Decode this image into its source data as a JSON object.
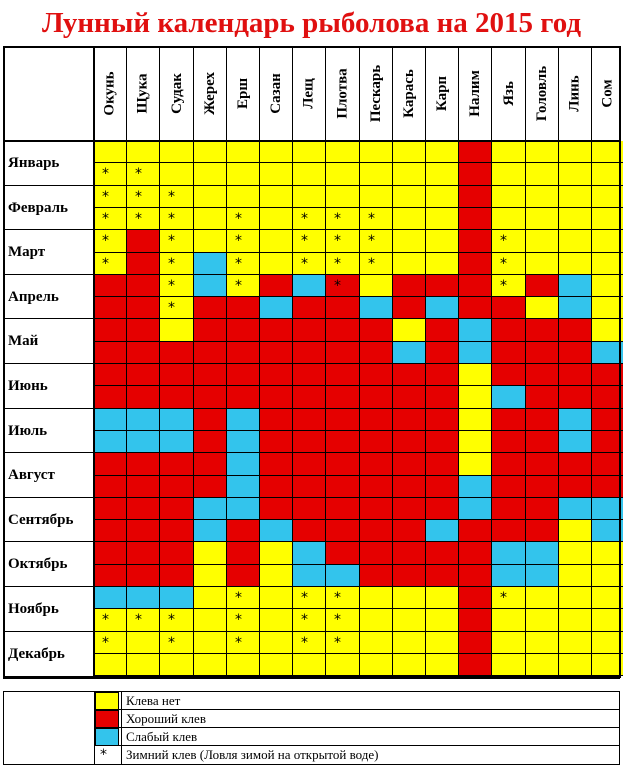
{
  "title": "Лунный календарь рыболова на 2015 год",
  "colors": {
    "no_bite": "#ffff00",
    "good_bite": "#e50000",
    "weak_bite": "#33c4ec",
    "title": "#e01010"
  },
  "fish": [
    "Окунь",
    "Щука",
    "Судак",
    "Жерех",
    "Ерш",
    "Сазан",
    "Лещ",
    "Плотва",
    "Пескарь",
    "Карась",
    "Карп",
    "Налим",
    "Язь",
    "Головль",
    "Линь",
    "Сом"
  ],
  "months": [
    "Январь",
    "Февраль",
    "Март",
    "Апрель",
    "Май",
    "Июнь",
    "Июль",
    "Август",
    "Сентябрь",
    "Октябрь",
    "Ноябрь",
    "Декабрь"
  ],
  "grid_legend": {
    "Y": "no_bite",
    "R": "good_bite",
    "B": "weak_bite"
  },
  "grid": [
    "YYYYYYYYYYYRYYYY",
    "YYYYYYYYYYYRYYYY",
    "YYYYYYYYYYYRYYYY",
    "YYYYYYYYYYYRYYYY",
    "YRYYYYYYYYYRYYYY",
    "YRYBYYYYYYYRYYYY",
    "RRYBYRBRYRRRYRBY",
    "RRYRRBRRBRBRRYBY",
    "RRYRRRRRRYRBRRRY",
    "RRRRRRRRRBRBRRRB",
    "RRRRRRRRRRRYRRRR",
    "RRRRRRRRRRRYBRRR",
    "BBBRBRRRRRRYRRBR",
    "BBBRBRRRRRRYRRBR",
    "RRRRBRRRRRRYRRRR",
    "RRRRBRRRRRRBRRRR",
    "RRRBBRRRRRRBRRBB",
    "RRRBRBRRRRBRRRYB",
    "RRRYRYBRRRRRBBYY",
    "RRRYRYBBRRRRBBYY",
    "BBBYYYYYYYYRYYYY",
    "YYYYYYYYYYYRYYYY",
    "YYYYYYYYYYYRYYYY",
    "YYYYYYYYYYYRYYYY"
  ],
  "winter_bite_stars": [
    [
      1,
      0
    ],
    [
      1,
      1
    ],
    [
      2,
      0
    ],
    [
      2,
      1
    ],
    [
      2,
      2
    ],
    [
      3,
      0
    ],
    [
      3,
      1
    ],
    [
      3,
      2
    ],
    [
      3,
      4
    ],
    [
      3,
      6
    ],
    [
      3,
      7
    ],
    [
      3,
      8
    ],
    [
      4,
      0
    ],
    [
      4,
      2
    ],
    [
      4,
      4
    ],
    [
      4,
      6
    ],
    [
      4,
      7
    ],
    [
      4,
      8
    ],
    [
      4,
      12
    ],
    [
      5,
      0
    ],
    [
      5,
      2
    ],
    [
      5,
      4
    ],
    [
      5,
      6
    ],
    [
      5,
      7
    ],
    [
      5,
      8
    ],
    [
      5,
      12
    ],
    [
      6,
      2
    ],
    [
      6,
      4
    ],
    [
      6,
      7
    ],
    [
      6,
      12
    ],
    [
      7,
      2
    ],
    [
      20,
      4
    ],
    [
      20,
      6
    ],
    [
      20,
      7
    ],
    [
      20,
      12
    ],
    [
      21,
      0
    ],
    [
      21,
      1
    ],
    [
      21,
      2
    ],
    [
      21,
      4
    ],
    [
      21,
      6
    ],
    [
      21,
      7
    ],
    [
      22,
      0
    ],
    [
      22,
      2
    ],
    [
      22,
      4
    ],
    [
      22,
      6
    ],
    [
      22,
      7
    ]
  ],
  "star_glyph": "*",
  "legend": [
    {
      "type": "swatch",
      "color": "no_bite",
      "label": "Клева нет"
    },
    {
      "type": "swatch",
      "color": "good_bite",
      "label": "Хороший клев"
    },
    {
      "type": "swatch",
      "color": "weak_bite",
      "label": "Слабый клев"
    },
    {
      "type": "star",
      "glyph": "*",
      "label": "Зимний клев (Ловля зимой на открытой воде)"
    }
  ]
}
